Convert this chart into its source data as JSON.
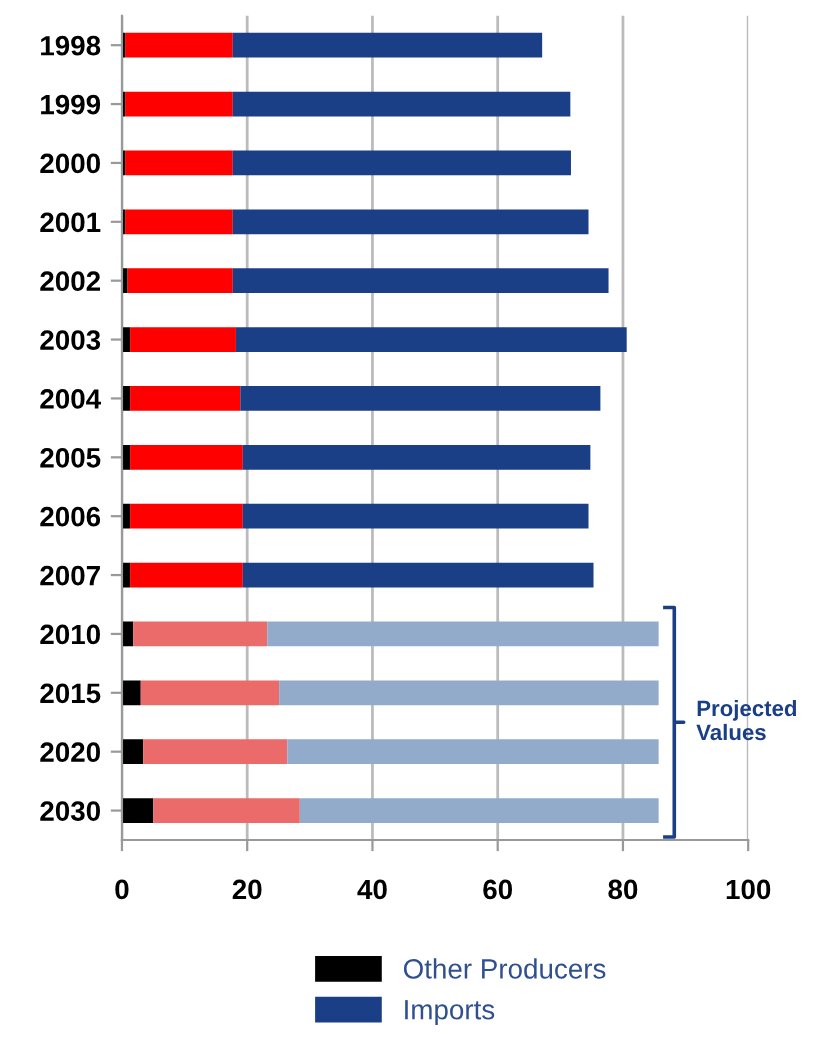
{
  "chart_data": {
    "type": "bar",
    "orientation": "horizontal",
    "stacked": true,
    "categories": [
      "1998",
      "1999",
      "2000",
      "2001",
      "2002",
      "2003",
      "2004",
      "2005",
      "2006",
      "2007",
      "2010",
      "2015",
      "2020",
      "2030"
    ],
    "series": [
      {
        "name": "Other Producers",
        "color": "#000000",
        "values": [
          0.5,
          0.5,
          0.5,
          0.5,
          0.9,
          1.3,
          1.3,
          1.3,
          1.3,
          1.3,
          1.8,
          3.0,
          3.4,
          5.0
        ]
      },
      {
        "colors": [
          "#ff0000",
          "#ff0000",
          "#ff0000",
          "#ff0000",
          "#ff0000",
          "#ff0000",
          "#ff0000",
          "#ff0000",
          "#ff0000",
          "#ff0000",
          "#eb6a6a",
          "#eb6a6a",
          "#eb6a6a",
          "#eb6a6a"
        ],
        "values": [
          17.2,
          17.2,
          17.2,
          17.2,
          16.8,
          16.9,
          17.6,
          18.0,
          18.0,
          18.0,
          21.4,
          22.1,
          23.0,
          23.4
        ]
      },
      {
        "name": "Imports",
        "color": "#1a3f86",
        "colors": [
          "#1a3f86",
          "#1a3f86",
          "#1a3f86",
          "#1a3f86",
          "#1a3f86",
          "#1a3f86",
          "#1a3f86",
          "#1a3f86",
          "#1a3f86",
          "#1a3f86",
          "#92abcb",
          "#92abcb",
          "#92abcb",
          "#92abcb"
        ],
        "values": [
          49.4,
          53.9,
          54.0,
          56.8,
          60.0,
          62.4,
          57.5,
          55.5,
          55.2,
          56.0,
          62.5,
          60.6,
          59.3,
          57.3
        ]
      }
    ],
    "xlim": [
      0,
      100
    ],
    "xticks": [
      0,
      20,
      40,
      60,
      80,
      100
    ],
    "grid": "x",
    "legend": "bottom",
    "annotations": [
      "Projected Values"
    ]
  }
}
